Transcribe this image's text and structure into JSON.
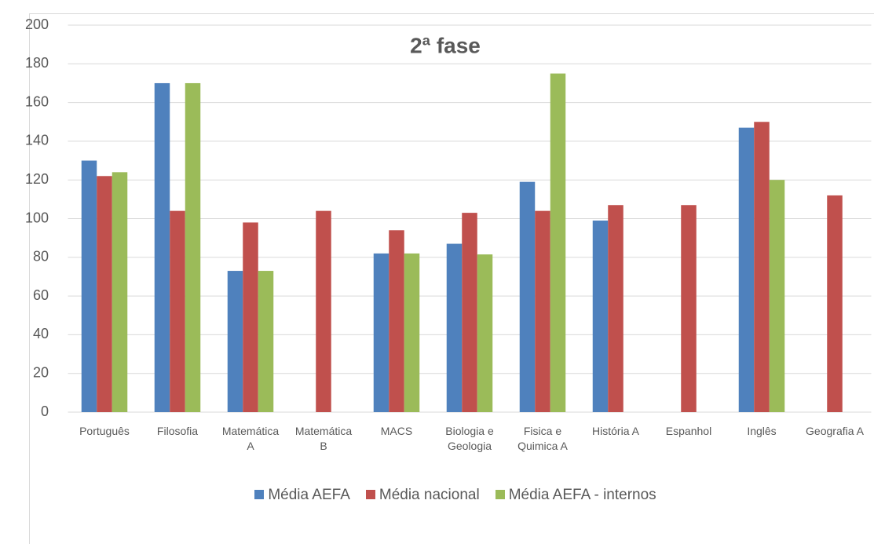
{
  "chart_data": {
    "type": "bar",
    "title": "2ª fase",
    "categories": [
      "Português",
      "Filosofia",
      "Matemática A",
      "Matemática B",
      "MACS",
      "Biologia e Geologia",
      "Fisica e Quimica A",
      "História A",
      "Espanhol",
      "Inglês",
      "Geografia A"
    ],
    "series": [
      {
        "name": "Média AEFA",
        "color": "#4f81bd",
        "values": [
          130,
          170,
          73,
          null,
          82,
          87,
          119,
          99,
          null,
          147,
          null
        ]
      },
      {
        "name": "Média nacional",
        "color": "#c0504d",
        "values": [
          122,
          104,
          98,
          104,
          94,
          103,
          104,
          107,
          107,
          150,
          112
        ]
      },
      {
        "name": "Média AEFA - internos",
        "color": "#9bbb59",
        "values": [
          124,
          170,
          73,
          null,
          82,
          81.5,
          175,
          null,
          null,
          120,
          null
        ]
      }
    ],
    "ylim": [
      0,
      200
    ],
    "yticks": [
      0,
      20,
      40,
      60,
      80,
      100,
      120,
      140,
      160,
      180,
      200
    ],
    "grid": true,
    "legend": "bottom"
  }
}
